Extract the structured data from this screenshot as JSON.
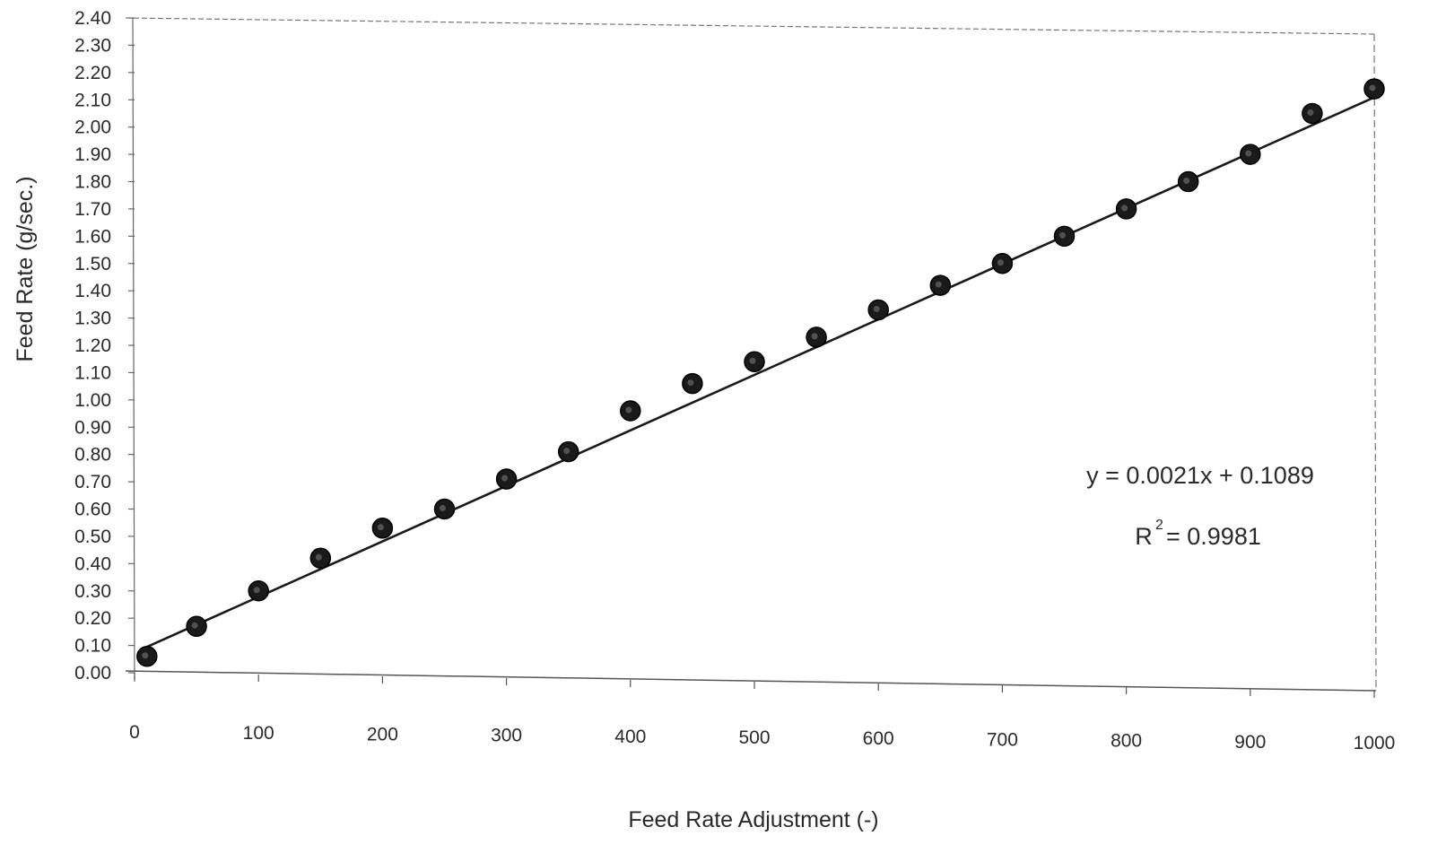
{
  "chart_data": {
    "type": "scatter",
    "xlabel": "Feed Rate Adjustment (-)",
    "ylabel": "Feed Rate (g/sec.)",
    "xlim": [
      0,
      1000
    ],
    "ylim": [
      0,
      2.4
    ],
    "x_ticks": [
      "0",
      "100",
      "200",
      "300",
      "400",
      "500",
      "600",
      "700",
      "800",
      "900",
      "1000"
    ],
    "y_ticks": [
      "0.00",
      "0.10",
      "0.20",
      "0.30",
      "0.40",
      "0.50",
      "0.60",
      "0.70",
      "0.80",
      "0.90",
      "1.00",
      "1.10",
      "1.20",
      "1.30",
      "1.40",
      "1.50",
      "1.60",
      "1.70",
      "1.80",
      "1.90",
      "2.00",
      "2.10",
      "2.20",
      "2.30",
      "2.40"
    ],
    "grid": false,
    "series": [
      {
        "x": [
          10,
          50,
          100,
          150,
          200,
          250,
          300,
          350,
          400,
          450,
          500,
          550,
          600,
          650,
          700,
          750,
          800,
          850,
          900,
          950,
          1000
        ],
        "y": [
          0.06,
          0.17,
          0.3,
          0.42,
          0.53,
          0.6,
          0.71,
          0.81,
          0.96,
          1.06,
          1.14,
          1.23,
          1.33,
          1.42,
          1.5,
          1.6,
          1.7,
          1.8,
          1.9,
          2.05,
          2.14
        ]
      }
    ],
    "trendline": {
      "slope": 0.0021,
      "intercept": 0.1089,
      "x_range": [
        10,
        1000
      ]
    },
    "annotations": {
      "equation": "y = 0.0021x + 0.1089",
      "r2_base": "R",
      "r2_sup": "2",
      "r2_value": "= 0.9981"
    },
    "colors": {
      "marker": "#1a1a1a",
      "line": "#1a1a1a",
      "axis": "#555555"
    }
  }
}
